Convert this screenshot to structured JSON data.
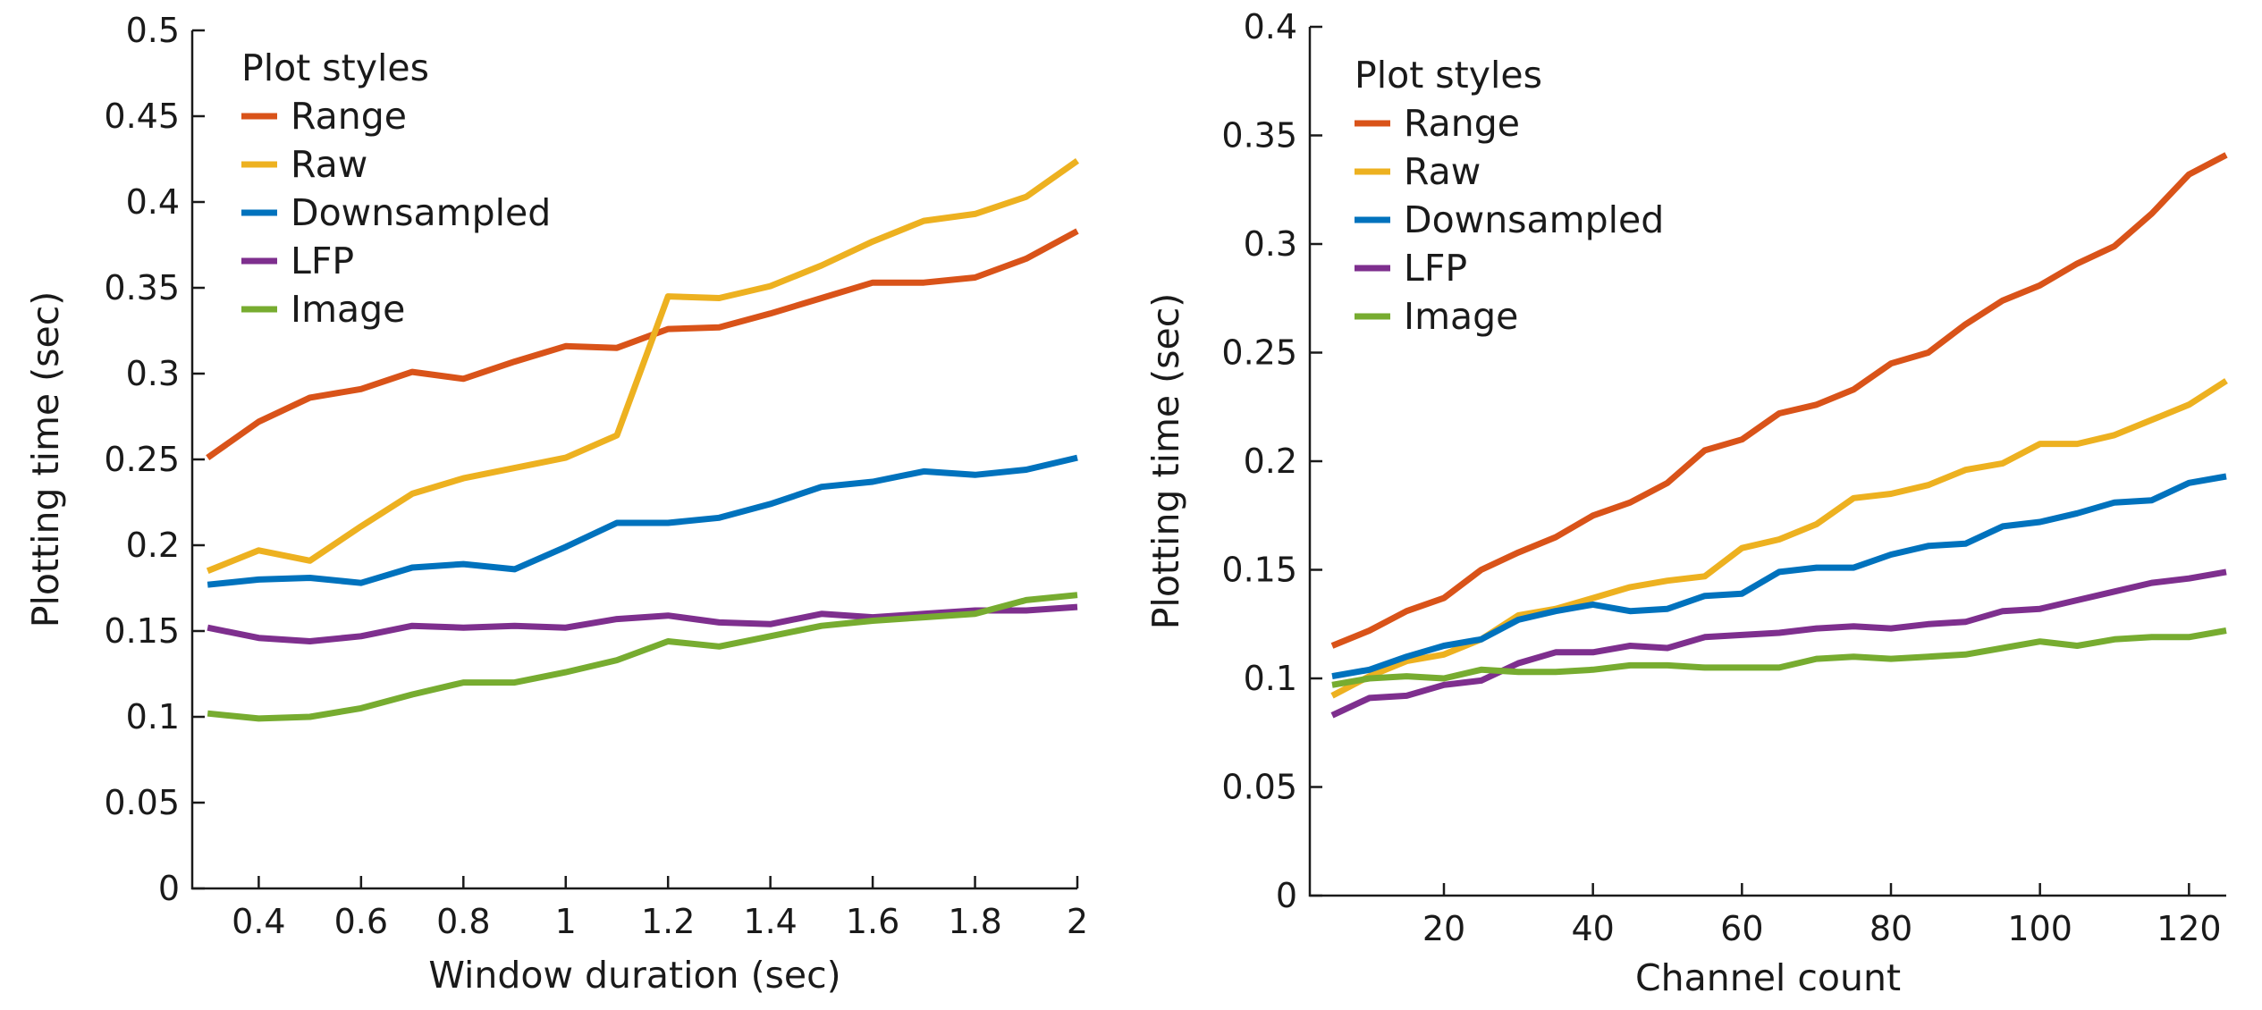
{
  "colors": {
    "Range": "#d95319",
    "Raw": "#edb120",
    "Downsampled": "#0072bd",
    "LFP": "#7e2f8e",
    "Image": "#77ac30"
  },
  "chart_data": [
    {
      "type": "line",
      "title": "",
      "xlabel": "Window duration (sec)",
      "ylabel": "Plotting time (sec)",
      "xlim": [
        0.27,
        2.0
      ],
      "ylim": [
        0,
        0.5
      ],
      "xticks": [
        0.4,
        0.6,
        0.8,
        1,
        1.2,
        1.4,
        1.6,
        1.8,
        2
      ],
      "xtick_labels": [
        "0.4",
        "0.6",
        "0.8",
        "1",
        "1.2",
        "1.4",
        "1.6",
        "1.8",
        "2"
      ],
      "yticks": [
        0,
        0.05,
        0.1,
        0.15,
        0.2,
        0.25,
        0.3,
        0.35,
        0.4,
        0.45,
        0.5
      ],
      "ytick_labels": [
        "0",
        "0.05",
        "0.1",
        "0.15",
        "0.2",
        "0.25",
        "0.3",
        "0.35",
        "0.4",
        "0.45",
        "0.5"
      ],
      "legend_title": "Plot styles",
      "legend_position": "top-left",
      "x": [
        0.3,
        0.4,
        0.5,
        0.6,
        0.7,
        0.8,
        0.9,
        1.0,
        1.1,
        1.2,
        1.3,
        1.4,
        1.5,
        1.6,
        1.7,
        1.8,
        1.9,
        2.0
      ],
      "series": [
        {
          "name": "Range",
          "values": [
            0.251,
            0.272,
            0.286,
            0.291,
            0.301,
            0.297,
            0.307,
            0.316,
            0.315,
            0.326,
            0.327,
            0.335,
            0.344,
            0.353,
            0.353,
            0.356,
            0.367,
            0.383
          ]
        },
        {
          "name": "Raw",
          "values": [
            0.185,
            0.197,
            0.191,
            0.211,
            0.23,
            0.239,
            0.245,
            0.251,
            0.264,
            0.345,
            0.344,
            0.351,
            0.363,
            0.377,
            0.389,
            0.393,
            0.403,
            0.424
          ]
        },
        {
          "name": "Downsampled",
          "values": [
            0.177,
            0.18,
            0.181,
            0.178,
            0.187,
            0.189,
            0.186,
            0.199,
            0.213,
            0.213,
            0.216,
            0.224,
            0.234,
            0.237,
            0.243,
            0.241,
            0.244,
            0.251
          ]
        },
        {
          "name": "LFP",
          "values": [
            0.152,
            0.146,
            0.144,
            0.147,
            0.153,
            0.152,
            0.153,
            0.152,
            0.157,
            0.159,
            0.155,
            0.154,
            0.16,
            0.158,
            0.16,
            0.162,
            0.162,
            0.164
          ]
        },
        {
          "name": "Image",
          "values": [
            0.102,
            0.099,
            0.1,
            0.105,
            0.113,
            0.12,
            0.12,
            0.126,
            0.133,
            0.144,
            0.141,
            0.147,
            0.153,
            0.156,
            0.158,
            0.16,
            0.168,
            0.171
          ]
        }
      ]
    },
    {
      "type": "line",
      "title": "",
      "xlabel": "Channel count",
      "ylabel": "Plotting time (sec)",
      "xlim": [
        2,
        125
      ],
      "ylim": [
        0,
        0.4
      ],
      "xticks": [
        20,
        40,
        60,
        80,
        100,
        120
      ],
      "xtick_labels": [
        "20",
        "40",
        "60",
        "80",
        "100",
        "120"
      ],
      "yticks": [
        0,
        0.05,
        0.1,
        0.15,
        0.2,
        0.25,
        0.3,
        0.35,
        0.4
      ],
      "ytick_labels": [
        "0",
        "0.05",
        "0.1",
        "0.15",
        "0.2",
        "0.25",
        "0.3",
        "0.35",
        "0.4"
      ],
      "legend_title": "Plot styles",
      "legend_position": "top-left",
      "x": [
        5,
        10,
        15,
        20,
        25,
        30,
        35,
        40,
        45,
        50,
        55,
        60,
        65,
        70,
        75,
        80,
        85,
        90,
        95,
        100,
        105,
        110,
        115,
        120,
        125
      ],
      "series": [
        {
          "name": "Range",
          "values": [
            0.115,
            0.122,
            0.131,
            0.137,
            0.15,
            0.158,
            0.165,
            0.175,
            0.181,
            0.19,
            0.205,
            0.21,
            0.222,
            0.226,
            0.233,
            0.245,
            0.25,
            0.263,
            0.274,
            0.281,
            0.291,
            0.299,
            0.314,
            0.332,
            0.341
          ]
        },
        {
          "name": "Raw",
          "values": [
            0.092,
            0.101,
            0.108,
            0.111,
            0.118,
            0.129,
            0.132,
            0.137,
            0.142,
            0.145,
            0.147,
            0.16,
            0.164,
            0.171,
            0.183,
            0.185,
            0.189,
            0.196,
            0.199,
            0.208,
            0.208,
            0.212,
            0.219,
            0.226,
            0.237
          ]
        },
        {
          "name": "Downsampled",
          "values": [
            0.101,
            0.104,
            0.11,
            0.115,
            0.118,
            0.127,
            0.131,
            0.134,
            0.131,
            0.132,
            0.138,
            0.139,
            0.149,
            0.151,
            0.151,
            0.157,
            0.161,
            0.162,
            0.17,
            0.172,
            0.176,
            0.181,
            0.182,
            0.19,
            0.193
          ]
        },
        {
          "name": "LFP",
          "values": [
            0.083,
            0.091,
            0.092,
            0.097,
            0.099,
            0.107,
            0.112,
            0.112,
            0.115,
            0.114,
            0.119,
            0.12,
            0.121,
            0.123,
            0.124,
            0.123,
            0.125,
            0.126,
            0.131,
            0.132,
            0.136,
            0.14,
            0.144,
            0.146,
            0.149
          ]
        },
        {
          "name": "Image",
          "values": [
            0.097,
            0.1,
            0.101,
            0.1,
            0.104,
            0.103,
            0.103,
            0.104,
            0.106,
            0.106,
            0.105,
            0.105,
            0.105,
            0.109,
            0.11,
            0.109,
            0.11,
            0.111,
            0.114,
            0.117,
            0.115,
            0.118,
            0.119,
            0.119,
            0.122
          ]
        }
      ]
    }
  ]
}
